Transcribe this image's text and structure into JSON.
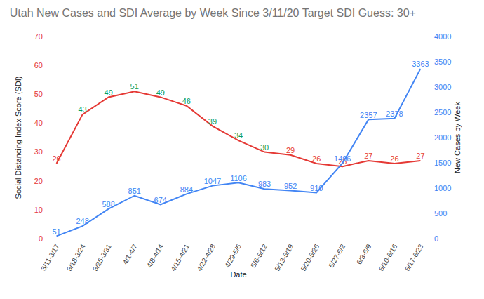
{
  "chart_data": {
    "type": "line",
    "title": "Utah New Cases and SDI Average by Week Since 3/11/20 Target SDI Guess: 30+",
    "x_label": "Date",
    "y_label": "Social Distancing Index Score (SDI)",
    "y2_label": "New Cases by Week",
    "categories": [
      "3/11-3/17",
      "3/18-3/24",
      "3/25-3/31",
      "4/1-4/7",
      "4/8-4/14",
      "4/15-4/21",
      "4/22-4/28",
      "4/29-5/5",
      "5/6-5/12",
      "5/13-5/19",
      "5/20-5/26",
      "5/27-6/2",
      "6/3-6/9",
      "6/10-6/16",
      "6/17-6/23"
    ],
    "series": [
      {
        "color": "#e53935",
        "values": [
          26,
          43,
          49,
          51,
          49,
          46,
          39,
          34,
          30,
          29,
          26,
          25,
          27,
          26,
          27
        ],
        "colors": [
          "#e53935",
          "#0f9d58",
          "#0f9d58",
          "#0f9d58",
          "#0f9d58",
          "#0f9d58",
          "#0f9d58",
          "#0f9d58",
          "#0f9d58",
          "#e53935",
          "#e53935",
          "#e53935",
          "#e53935",
          "#e53935",
          "#e53935"
        ]
      },
      {
        "color": "#4285f4",
        "axis": "y2",
        "values": [
          51,
          248,
          588,
          851,
          674,
          884,
          1047,
          1106,
          983,
          952,
          910,
          1496,
          2357,
          2378,
          3363
        ]
      }
    ],
    "ylim": [
      0,
      70
    ],
    "yticks": [
      0,
      10,
      20,
      30,
      40,
      50,
      60,
      70
    ],
    "y2lim": [
      0,
      4000
    ],
    "y2ticks": [
      0,
      500,
      1000,
      1500,
      2000,
      2500,
      3000,
      3500,
      4000
    ],
    "grid": false,
    "data_labels": true
  }
}
